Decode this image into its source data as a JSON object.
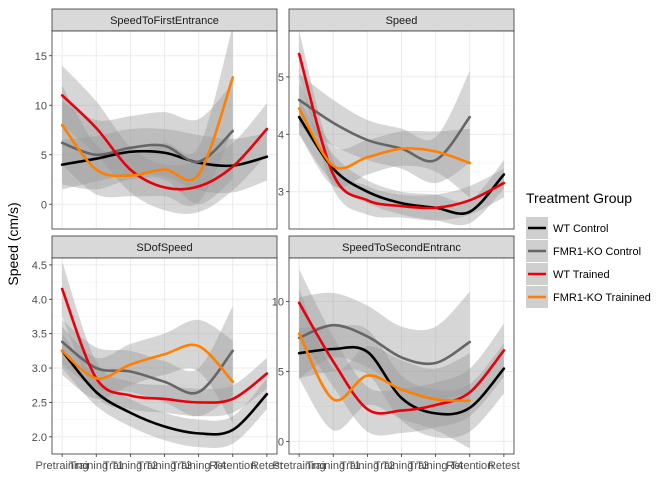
{
  "chart_data": {
    "type": "line",
    "ylabel": "Speed (cm/s)",
    "x_categories": [
      "Pretraining",
      "Training T1",
      "Training T2",
      "Training T3",
      "Training T4",
      "Retention",
      "Retest"
    ],
    "legend": {
      "title": "Treatment Group",
      "position": "right",
      "entries": [
        {
          "name": "WT Control",
          "color": "#000000"
        },
        {
          "name": "FMR1-KO Control",
          "color": "#666666"
        },
        {
          "name": "WT Trained",
          "color": "#e8000b"
        },
        {
          "name": "FMR1-KO Trainined",
          "color": "#ff7f00"
        }
      ]
    },
    "band_color": "#999999",
    "grid": true,
    "facets": [
      {
        "title": "SpeedToFirstEntrance",
        "ylim": [
          -2.5,
          17.5
        ],
        "yticks": [
          0,
          5,
          10,
          15
        ],
        "series": [
          {
            "name": "WT Control",
            "x": [
              1,
              2,
              3,
              4,
              5,
              6,
              7
            ],
            "y": [
              4.0,
              4.6,
              5.3,
              5.2,
              4.2,
              3.9,
              4.8
            ],
            "lower": [
              1.5,
              2.3,
              3.0,
              2.8,
              1.4,
              1.2,
              2.4
            ],
            "upper": [
              6.5,
              6.9,
              7.6,
              7.6,
              7.0,
              6.6,
              7.2
            ]
          },
          {
            "name": "FMR1-KO Control",
            "x": [
              1,
              2,
              3,
              4,
              5,
              6
            ],
            "y": [
              6.2,
              5.0,
              5.7,
              5.9,
              4.3,
              7.4
            ],
            "lower": [
              2.0,
              1.5,
              2.5,
              2.5,
              0.0,
              2.5
            ],
            "upper": [
              10.4,
              8.5,
              8.9,
              9.3,
              8.6,
              12.3
            ]
          },
          {
            "name": "WT Trained",
            "x": [
              1,
              2,
              3,
              4,
              5,
              6,
              7
            ],
            "y": [
              11.0,
              7.7,
              3.5,
              1.7,
              1.8,
              3.8,
              7.6
            ],
            "lower": [
              8.0,
              5.0,
              1.2,
              -0.6,
              -0.8,
              1.4,
              5.0
            ],
            "upper": [
              14.0,
              10.4,
              5.8,
              4.0,
              4.4,
              6.2,
              10.2
            ]
          },
          {
            "name": "FMR1-KO Trainined",
            "x": [
              1,
              2,
              3,
              4,
              5,
              6
            ],
            "y": [
              8.0,
              3.5,
              2.9,
              3.5,
              3.0,
              12.8
            ],
            "lower": [
              4.0,
              1.0,
              0.8,
              0.8,
              0.2,
              7.5
            ],
            "upper": [
              12.0,
              6.0,
              5.0,
              6.2,
              5.8,
              18.0
            ]
          }
        ]
      },
      {
        "title": "Speed",
        "ylim": [
          2.35,
          5.8
        ],
        "yticks": [
          3,
          4,
          5
        ],
        "series": [
          {
            "name": "WT Control",
            "x": [
              1,
              2,
              3,
              4,
              5,
              6,
              7
            ],
            "y": [
              4.3,
              3.4,
              3.0,
              2.8,
              2.72,
              2.65,
              3.3
            ],
            "lower": [
              4.0,
              3.15,
              2.8,
              2.6,
              2.5,
              2.45,
              3.05
            ],
            "upper": [
              4.6,
              3.65,
              3.2,
              3.0,
              2.95,
              2.85,
              3.55
            ]
          },
          {
            "name": "FMR1-KO Control",
            "x": [
              1,
              2,
              3,
              4,
              5,
              6
            ],
            "y": [
              4.6,
              4.2,
              3.9,
              3.75,
              3.55,
              4.3
            ],
            "lower": [
              4.15,
              3.8,
              3.55,
              3.4,
              3.15,
              3.5
            ],
            "upper": [
              5.05,
              4.6,
              4.25,
              4.1,
              3.95,
              5.1
            ]
          },
          {
            "name": "WT Trained",
            "x": [
              1,
              2,
              3,
              4,
              5,
              6,
              7
            ],
            "y": [
              5.4,
              3.3,
              2.85,
              2.75,
              2.72,
              2.85,
              3.15
            ],
            "lower": [
              5.0,
              3.05,
              2.6,
              2.55,
              2.5,
              2.6,
              2.9
            ],
            "upper": [
              5.8,
              3.55,
              3.1,
              2.95,
              2.95,
              3.1,
              3.4
            ]
          },
          {
            "name": "FMR1-KO Trainined",
            "x": [
              1,
              2,
              3,
              4,
              5,
              6
            ],
            "y": [
              4.45,
              3.45,
              3.6,
              3.75,
              3.7,
              3.5
            ],
            "lower": [
              4.0,
              3.1,
              3.3,
              3.45,
              3.35,
              2.9
            ],
            "upper": [
              4.9,
              3.8,
              3.9,
              4.05,
              4.05,
              4.1
            ]
          }
        ]
      },
      {
        "title": "SDofSpeed",
        "ylim": [
          1.75,
          4.6
        ],
        "yticks": [
          2.0,
          2.5,
          3.0,
          3.5,
          4.0,
          4.5
        ],
        "series": [
          {
            "name": "WT Control",
            "x": [
              1,
              2,
              3,
              4,
              5,
              6,
              7
            ],
            "y": [
              3.25,
              2.65,
              2.35,
              2.15,
              2.05,
              2.1,
              2.62
            ],
            "lower": [
              3.0,
              2.45,
              2.15,
              1.95,
              1.85,
              1.9,
              2.4
            ],
            "upper": [
              3.5,
              2.85,
              2.55,
              2.35,
              2.25,
              2.3,
              2.85
            ]
          },
          {
            "name": "FMR1-KO Control",
            "x": [
              1,
              2,
              3,
              4,
              5,
              6
            ],
            "y": [
              3.38,
              3.0,
              2.95,
              2.8,
              2.65,
              3.25
            ],
            "lower": [
              3.05,
              2.7,
              2.65,
              2.5,
              2.3,
              2.6
            ],
            "upper": [
              3.7,
              3.3,
              3.25,
              3.1,
              3.0,
              3.9
            ]
          },
          {
            "name": "WT Trained",
            "x": [
              1,
              2,
              3,
              4,
              5,
              6,
              7
            ],
            "y": [
              4.15,
              2.85,
              2.6,
              2.55,
              2.5,
              2.55,
              2.92
            ],
            "lower": [
              3.75,
              2.6,
              2.4,
              2.35,
              2.3,
              2.35,
              2.7
            ],
            "upper": [
              4.55,
              3.1,
              2.8,
              2.75,
              2.7,
              2.75,
              3.15
            ]
          },
          {
            "name": "FMR1-KO Trainined",
            "x": [
              1,
              2,
              3,
              4,
              5,
              6
            ],
            "y": [
              3.25,
              2.85,
              3.05,
              3.2,
              3.32,
              2.8
            ],
            "lower": [
              2.9,
              2.55,
              2.75,
              2.9,
              2.95,
              2.2
            ],
            "upper": [
              3.6,
              3.15,
              3.35,
              3.5,
              3.7,
              3.4
            ]
          }
        ]
      },
      {
        "title": "SpeedToSecondEntranc",
        "ylim": [
          -0.9,
          13.1
        ],
        "yticks": [
          0,
          5,
          10
        ],
        "series": [
          {
            "name": "WT Control",
            "x": [
              1,
              2,
              3,
              4,
              5,
              6,
              7
            ],
            "y": [
              6.3,
              6.6,
              6.4,
              3.1,
              2.0,
              2.4,
              5.2
            ],
            "lower": [
              4.5,
              5.0,
              4.8,
              1.5,
              0.3,
              0.7,
              3.4
            ],
            "upper": [
              8.1,
              8.2,
              8.0,
              4.7,
              3.7,
              4.1,
              7.0
            ]
          },
          {
            "name": "FMR1-KO Control",
            "x": [
              1,
              2,
              3,
              4,
              5,
              6
            ],
            "y": [
              7.4,
              8.3,
              7.5,
              6.0,
              5.6,
              7.1
            ],
            "lower": [
              4.5,
              6.0,
              5.3,
              3.8,
              3.0,
              3.5
            ],
            "upper": [
              10.3,
              10.6,
              9.7,
              8.2,
              8.2,
              10.7
            ]
          },
          {
            "name": "WT Trained",
            "x": [
              1,
              2,
              3,
              4,
              5,
              6,
              7
            ],
            "y": [
              9.9,
              5.7,
              2.3,
              2.2,
              2.6,
              3.5,
              6.5
            ],
            "lower": [
              7.5,
              3.9,
              0.7,
              0.6,
              1.0,
              1.8,
              4.6
            ],
            "upper": [
              12.3,
              7.5,
              3.9,
              3.8,
              4.2,
              5.2,
              8.4
            ]
          },
          {
            "name": "FMR1-KO Trainined",
            "x": [
              1,
              2,
              3,
              4,
              5,
              6
            ],
            "y": [
              7.7,
              3.0,
              4.7,
              3.7,
              3.0,
              2.9
            ],
            "lower": [
              4.5,
              0.8,
              2.6,
              1.6,
              0.8,
              -0.5
            ],
            "upper": [
              10.9,
              5.2,
              6.8,
              5.8,
              5.2,
              6.3
            ]
          }
        ]
      }
    ]
  }
}
